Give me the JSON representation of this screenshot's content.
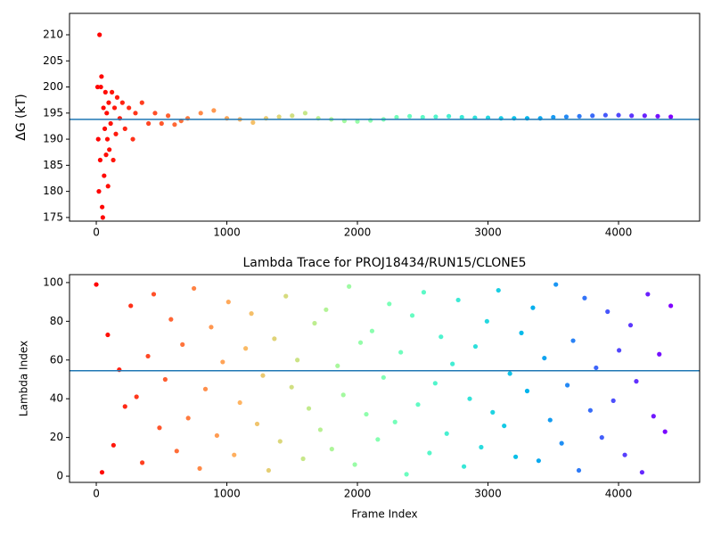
{
  "chart_data": [
    {
      "type": "scatter",
      "ylabel": "ΔG (kT)",
      "colormap": "rainbow_r",
      "hline": 193.8,
      "hline_color": "#1f77b4",
      "xlim": [
        -205,
        4621
      ],
      "ylim": [
        174.3,
        214.1
      ],
      "xticks": [
        0,
        1000,
        2000,
        3000,
        4000
      ],
      "yticks": [
        175,
        180,
        185,
        190,
        195,
        200,
        205,
        210
      ],
      "x": [
        10,
        15,
        20,
        25,
        30,
        35,
        40,
        45,
        50,
        55,
        60,
        65,
        70,
        75,
        80,
        85,
        90,
        95,
        100,
        110,
        120,
        130,
        140,
        150,
        160,
        180,
        200,
        220,
        250,
        280,
        300,
        350,
        400,
        450,
        500,
        550,
        600,
        650,
        700,
        800,
        900,
        1000,
        1100,
        1200,
        1300,
        1400,
        1500,
        1600,
        1700,
        1800,
        1900,
        2000,
        2100,
        2200,
        2300,
        2400,
        2500,
        2600,
        2700,
        2800,
        2900,
        3000,
        3100,
        3200,
        3300,
        3400,
        3500,
        3600,
        3700,
        3800,
        3900,
        4000,
        4100,
        4200,
        4300,
        4400
      ],
      "y": [
        200,
        190,
        180,
        210,
        186,
        200,
        202,
        177,
        175,
        196,
        183,
        192,
        199,
        187,
        195,
        190,
        181,
        197,
        188,
        193,
        199,
        186,
        196,
        191,
        198,
        194,
        197,
        192,
        196,
        190,
        195,
        197,
        193,
        195,
        193,
        194.5,
        192.8,
        193.5,
        194,
        195,
        195.5,
        194,
        193.8,
        193.2,
        194,
        194.3,
        194.5,
        195,
        194,
        193.8,
        193.5,
        193.4,
        193.6,
        193.8,
        194.2,
        194.4,
        194.2,
        194.3,
        194.4,
        194.2,
        194.1,
        194.1,
        194,
        194,
        194,
        194,
        194.2,
        194.3,
        194.4,
        194.5,
        194.6,
        194.6,
        194.5,
        194.5,
        194.4,
        194.3
      ]
    },
    {
      "type": "scatter",
      "title": "Lambda Trace for PROJ18434/RUN15/CLONE5",
      "xlabel": "Frame Index",
      "ylabel": "Lambda Index",
      "colormap": "rainbow_r",
      "hline": 54.5,
      "hline_color": "#1f77b4",
      "xlim": [
        -205,
        4621
      ],
      "ylim": [
        -3.2,
        104.1
      ],
      "xticks": [
        0,
        1000,
        2000,
        3000,
        4000
      ],
      "yticks": [
        0,
        20,
        40,
        60,
        80,
        100
      ],
      "x": [
        0,
        44,
        88,
        132,
        176,
        220,
        264,
        308,
        352,
        396,
        440,
        484,
        528,
        572,
        616,
        660,
        704,
        748,
        792,
        836,
        880,
        924,
        968,
        1012,
        1056,
        1100,
        1144,
        1188,
        1232,
        1276,
        1320,
        1364,
        1408,
        1452,
        1496,
        1540,
        1584,
        1628,
        1672,
        1716,
        1760,
        1804,
        1848,
        1892,
        1936,
        1980,
        2024,
        2068,
        2112,
        2156,
        2200,
        2244,
        2288,
        2332,
        2376,
        2420,
        2464,
        2508,
        2552,
        2596,
        2640,
        2684,
        2728,
        2772,
        2816,
        2860,
        2904,
        2948,
        2992,
        3036,
        3080,
        3124,
        3168,
        3212,
        3256,
        3300,
        3344,
        3388,
        3432,
        3476,
        3520,
        3564,
        3608,
        3652,
        3696,
        3740,
        3784,
        3828,
        3872,
        3916,
        3960,
        4004,
        4048,
        4092,
        4136,
        4180,
        4224,
        4268,
        4312,
        4356,
        4400
      ],
      "y": [
        99,
        2,
        73,
        16,
        55,
        36,
        88,
        41,
        7,
        62,
        94,
        25,
        50,
        81,
        13,
        68,
        30,
        97,
        4,
        45,
        77,
        21,
        59,
        90,
        11,
        38,
        66,
        84,
        27,
        52,
        3,
        71,
        18,
        93,
        46,
        60,
        9,
        35,
        79,
        24,
        86,
        14,
        57,
        42,
        98,
        6,
        69,
        32,
        75,
        19,
        51,
        89,
        28,
        64,
        1,
        83,
        37,
        95,
        12,
        48,
        72,
        22,
        58,
        91,
        5,
        40,
        67,
        15,
        80,
        33,
        96,
        26,
        53,
        10,
        74,
        44,
        87,
        8,
        61,
        29,
        99,
        17,
        47,
        70,
        3,
        92,
        34,
        56,
        20,
        85,
        39,
        65,
        11,
        78,
        49,
        2,
        94,
        31,
        63,
        23,
        88
      ]
    }
  ]
}
